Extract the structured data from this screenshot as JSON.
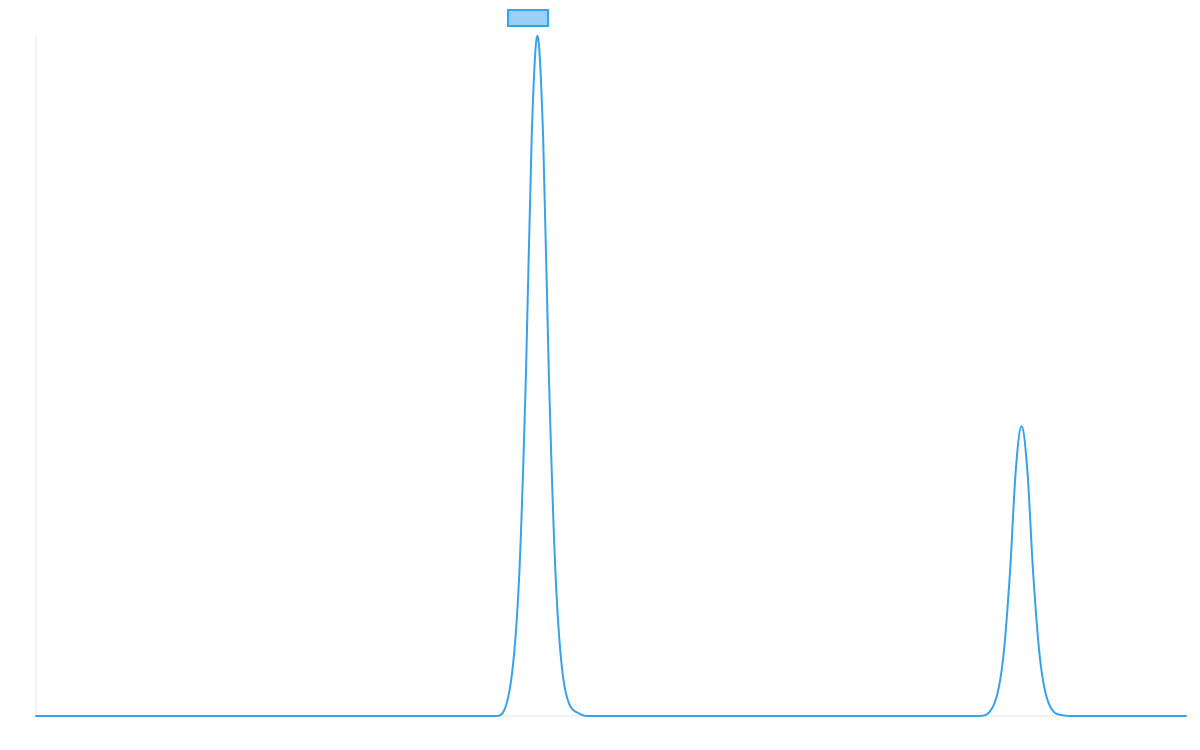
{
  "chart_data": {
    "type": "line",
    "title": "",
    "xlabel": "",
    "ylabel": "",
    "xlim": [
      0,
      100
    ],
    "ylim": [
      0,
      100
    ],
    "grid": false,
    "legend": "top-center",
    "series": [
      {
        "color": "#36a2eb",
        "fill": "#9ad0f5",
        "x": [
          0,
          40,
          41.2,
          42,
          42.6,
          43.1,
          43.6,
          44.1,
          44.6,
          45.2,
          46,
          47.3,
          48,
          82,
          83.3,
          84.1,
          84.7,
          85.2,
          85.7,
          86.2,
          86.7,
          87.3,
          88.1,
          89.3,
          90,
          100
        ],
        "y": [
          0,
          0,
          4.0,
          20.0,
          50.0,
          85.0,
          100.0,
          85.0,
          50.0,
          20.0,
          4.0,
          0.3,
          0,
          0,
          1.7,
          8.5,
          21.3,
          36.2,
          42.6,
          36.2,
          21.3,
          8.5,
          1.7,
          0.1,
          0,
          0
        ]
      }
    ]
  }
}
